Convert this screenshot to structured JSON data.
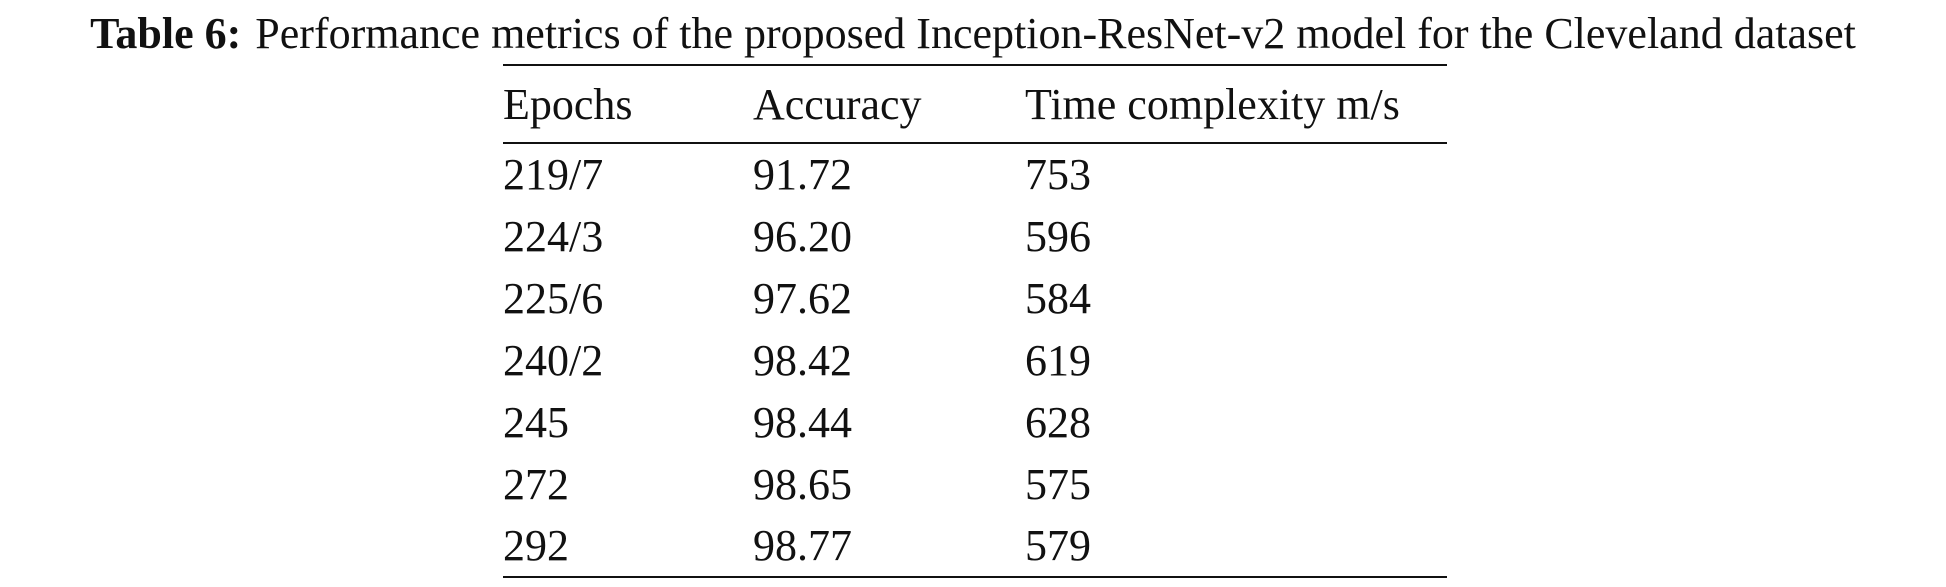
{
  "caption": {
    "label": "Table 6:",
    "text": "Performance metrics of the proposed Inception-ResNet-v2 model for the Cleveland dataset"
  },
  "table": {
    "headers": [
      "Epochs",
      "Accuracy",
      "Time complexity m/s"
    ],
    "rows": [
      [
        "219/7",
        "91.72",
        "753"
      ],
      [
        "224/3",
        "96.20",
        "596"
      ],
      [
        "225/6",
        "97.62",
        "584"
      ],
      [
        "240/2",
        "98.42",
        "619"
      ],
      [
        "245",
        "98.44",
        "628"
      ],
      [
        "272",
        "98.65",
        "575"
      ],
      [
        "292",
        "98.77",
        "579"
      ]
    ]
  }
}
